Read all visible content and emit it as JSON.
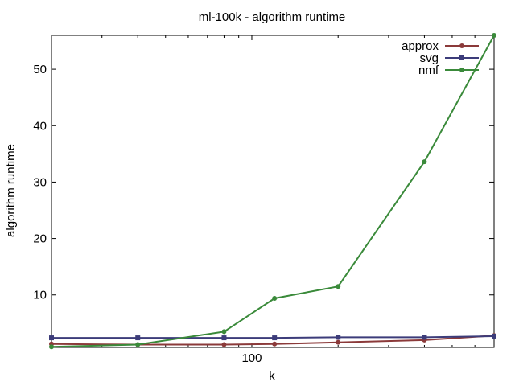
{
  "chart_data": {
    "type": "line",
    "title": "ml-100k - algorithm runtime",
    "xlabel": "k",
    "ylabel": "algorithm runtime",
    "x_scale": "log",
    "x": [
      20,
      40,
      80,
      120,
      200,
      400,
      700
    ],
    "xlim": [
      20,
      700
    ],
    "ylim": [
      0.7,
      56
    ],
    "x_ticks": [
      {
        "value": 100,
        "label": "100"
      }
    ],
    "y_ticks": [
      {
        "value": 10,
        "label": "10"
      },
      {
        "value": 20,
        "label": "20"
      },
      {
        "value": 30,
        "label": "30"
      },
      {
        "value": 40,
        "label": "40"
      },
      {
        "value": 50,
        "label": "50"
      }
    ],
    "grid": false,
    "legend_position": "top-right",
    "series": [
      {
        "name": "approx",
        "color": "#8b3a3a",
        "marker": "circle",
        "values": [
          1.3,
          1.2,
          1.2,
          1.3,
          1.6,
          2.0,
          2.8
        ]
      },
      {
        "name": "svg",
        "color": "#3c3c7a",
        "marker": "square",
        "values": [
          2.4,
          2.4,
          2.4,
          2.4,
          2.5,
          2.5,
          2.7
        ]
      },
      {
        "name": "nmf",
        "color": "#3a8a3a",
        "marker": "circle",
        "values": [
          0.8,
          1.2,
          3.5,
          9.4,
          11.5,
          33.6,
          56.0
        ]
      }
    ]
  }
}
